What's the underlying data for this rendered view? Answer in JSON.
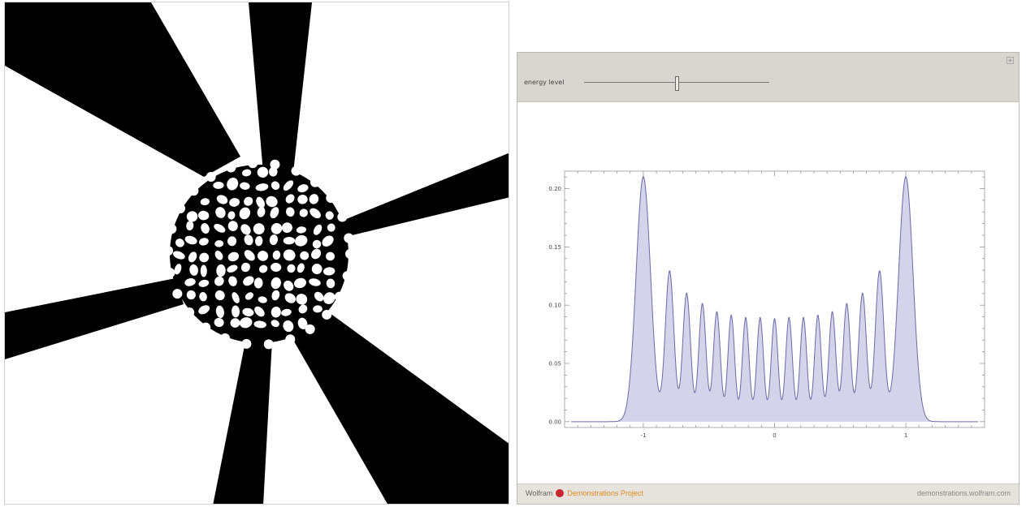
{
  "left_figure": {
    "background": "#ffffff",
    "foreground": "#000000"
  },
  "controls": {
    "slider_label": "energy level",
    "slider_value": 0.5
  },
  "footer": {
    "brand": "Wolfram",
    "project": "Demonstrations Project",
    "url": "demonstrations.wolfram.com"
  },
  "colors": {
    "fill": "#d3d3ea",
    "line": "#6a6aa8",
    "frame_bg": "#d9d6d0",
    "brand_orange": "#e08a1e",
    "logo_red": "#c8262e"
  },
  "chart_data": {
    "type": "area",
    "title": "",
    "xlabel": "",
    "ylabel": "",
    "xlim": [
      -1.6,
      1.6
    ],
    "ylim": [
      -0.005,
      0.215
    ],
    "x_ticks": [
      {
        "value": -1,
        "label": "-1"
      },
      {
        "value": 0,
        "label": "0"
      },
      {
        "value": 1,
        "label": "1"
      }
    ],
    "y_ticks": [
      {
        "value": 0.0,
        "label": "0.00"
      },
      {
        "value": 0.05,
        "label": "0.05"
      },
      {
        "value": 0.1,
        "label": "0.10"
      },
      {
        "value": 0.15,
        "label": "0.15"
      },
      {
        "value": 0.2,
        "label": "0.20"
      }
    ],
    "peaks": [
      {
        "x": -1.0,
        "y": 0.21,
        "width": 0.055
      },
      {
        "x": -0.8,
        "y": 0.129,
        "width": 0.033
      },
      {
        "x": -0.67,
        "y": 0.11,
        "width": 0.03
      },
      {
        "x": -0.55,
        "y": 0.101,
        "width": 0.028
      },
      {
        "x": -0.44,
        "y": 0.094,
        "width": 0.027
      },
      {
        "x": -0.33,
        "y": 0.091,
        "width": 0.026
      },
      {
        "x": -0.22,
        "y": 0.089,
        "width": 0.026
      },
      {
        "x": -0.11,
        "y": 0.089,
        "width": 0.026
      },
      {
        "x": 0.0,
        "y": 0.088,
        "width": 0.026
      },
      {
        "x": 0.11,
        "y": 0.089,
        "width": 0.026
      },
      {
        "x": 0.22,
        "y": 0.089,
        "width": 0.026
      },
      {
        "x": 0.33,
        "y": 0.091,
        "width": 0.026
      },
      {
        "x": 0.44,
        "y": 0.094,
        "width": 0.027
      },
      {
        "x": 0.55,
        "y": 0.101,
        "width": 0.028
      },
      {
        "x": 0.67,
        "y": 0.11,
        "width": 0.03
      },
      {
        "x": 0.8,
        "y": 0.129,
        "width": 0.033
      },
      {
        "x": 1.0,
        "y": 0.21,
        "width": 0.055
      }
    ]
  }
}
